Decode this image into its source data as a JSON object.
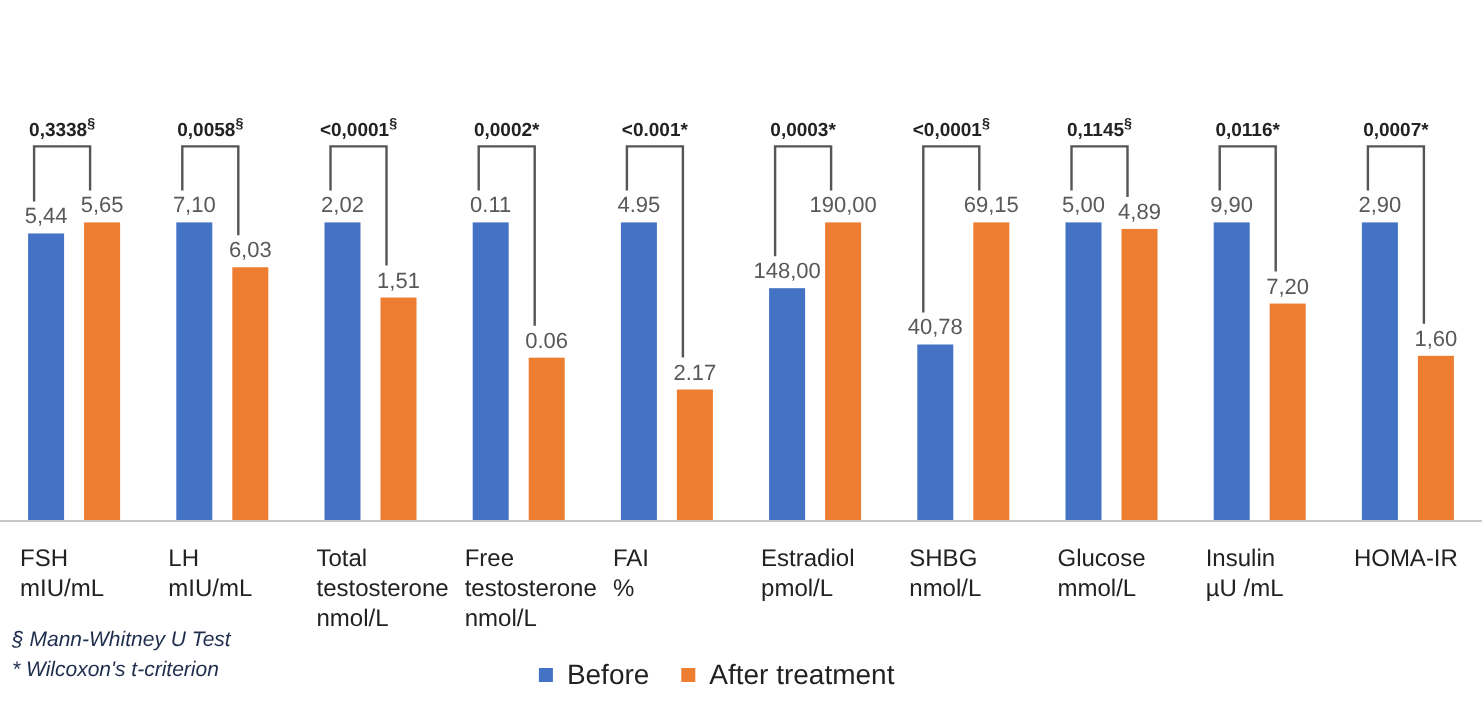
{
  "chart_data": [
    {
      "type": "bar",
      "categories": [
        "FSH\nmIU/mL"
      ],
      "annotations": [
        "0,3338$^{§}$",
        "§ Mann-Whitney U Test",
        "* Wilcoxon's t-criterion"
      ],
      "series": [
        {
          "color": "#4472c4",
          "values": [
            5.44
          ],
          "value_labels": [
            "5,44"
          ]
        },
        {
          "color": "#ed7d31",
          "values": [
            5.65
          ],
          "value_labels": [
            "5,65"
          ]
        }
      ]
    },
    {
      "type": "bar",
      "categories": [
        "LH\nmIU/mL"
      ],
      "annotations": [
        "0,0058$^{§}$"
      ],
      "series": [
        {
          "color": "#4472c4",
          "values": [
            7.1
          ],
          "value_labels": [
            "7,10"
          ]
        },
        {
          "color": "#ed7d31",
          "values": [
            6.03
          ],
          "value_labels": [
            "6,03"
          ]
        }
      ]
    },
    {
      "type": "bar",
      "categories": [
        "Total\ntestosterone\nnmol/L"
      ],
      "annotations": [
        "<0,0001$^{§}$"
      ],
      "series": [
        {
          "color": "#4472c4",
          "values": [
            2.02
          ],
          "value_labels": [
            "2,02"
          ]
        },
        {
          "color": "#ed7d31",
          "values": [
            1.51
          ],
          "value_labels": [
            "1,51"
          ]
        }
      ]
    },
    {
      "type": "bar",
      "categories": [
        "Free\ntestosterone\nnmol/L"
      ],
      "annotations": [
        "0,0002*"
      ],
      "series": [
        {
          "color": "#4472c4",
          "values": [
            0.11
          ],
          "value_labels": [
            "0.11"
          ]
        },
        {
          "color": "#ed7d31",
          "values": [
            0.06
          ],
          "value_labels": [
            "0.06"
          ]
        }
      ]
    },
    {
      "type": "bar",
      "categories": [
        "FAI\n%"
      ],
      "annotations": [
        "<0.001*"
      ],
      "series": [
        {
          "color": "#4472c4",
          "values": [
            4.95
          ],
          "value_labels": [
            "4.95"
          ]
        },
        {
          "color": "#ed7d31",
          "values": [
            2.17
          ],
          "value_labels": [
            "2.17"
          ]
        }
      ]
    },
    {
      "type": "bar",
      "categories": [
        "Estradiol\npmol/L"
      ],
      "legend": "bottom",
      "annotations": [
        "0,0003*"
      ],
      "series": [
        {
          "name": "Before",
          "color": "#4472c4",
          "values": [
            148
          ],
          "value_labels": [
            "148,00"
          ]
        },
        {
          "name": "After treatment",
          "color": "#ed7d31",
          "values": [
            190
          ],
          "value_labels": [
            "190,00"
          ]
        }
      ]
    },
    {
      "type": "bar",
      "categories": [
        "SHBG\nnmol/L"
      ],
      "annotations": [
        "<0,0001$^{§}$"
      ],
      "series": [
        {
          "color": "#4472c4",
          "values": [
            40.78
          ],
          "value_labels": [
            "40,78"
          ]
        },
        {
          "color": "#ed7d31",
          "values": [
            69.15
          ],
          "value_labels": [
            "69,15"
          ]
        }
      ]
    },
    {
      "type": "bar",
      "categories": [
        "Glucose\nmmol/L"
      ],
      "annotations": [
        "0,1145$^{§}$"
      ],
      "series": [
        {
          "color": "#4472c4",
          "values": [
            5.0
          ],
          "value_labels": [
            "5,00"
          ]
        },
        {
          "color": "#ed7d31",
          "values": [
            4.89
          ],
          "value_labels": [
            "4,89"
          ]
        }
      ]
    },
    {
      "type": "bar",
      "categories": [
        "Insulin\nµU /mL"
      ],
      "annotations": [
        "0,0116*"
      ],
      "series": [
        {
          "color": "#4472c4",
          "values": [
            9.9
          ],
          "value_labels": [
            "9,90"
          ]
        },
        {
          "color": "#ed7d31",
          "values": [
            7.2
          ],
          "value_labels": [
            "7,20"
          ]
        }
      ]
    },
    {
      "type": "bar",
      "categories": [
        "HOMA-IR"
      ],
      "annotations": [
        "0,0007*"
      ],
      "series": [
        {
          "color": "#4472c4",
          "values": [
            2.9
          ],
          "value_labels": [
            "2,90"
          ]
        },
        {
          "color": "#ed7d31",
          "values": [
            1.6
          ],
          "value_labels": [
            "1,60"
          ]
        }
      ]
    }
  ]
}
